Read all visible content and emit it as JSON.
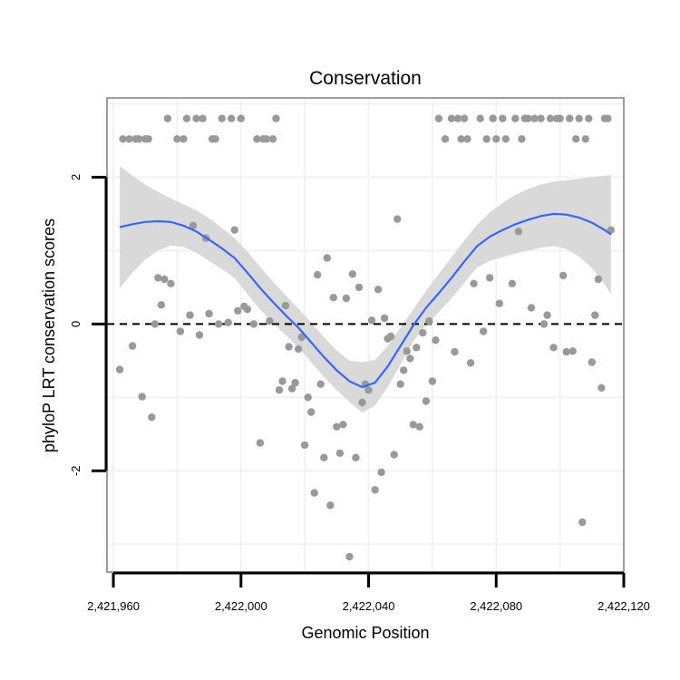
{
  "chart_data": {
    "type": "scatter",
    "title": "Conservation",
    "xlabel": "Genomic Position",
    "ylabel": "phyloP LRT conservation scores",
    "xlim": [
      2421958,
      2422120
    ],
    "ylim": [
      -3.38,
      3.08
    ],
    "x_ticks": [
      2421960,
      2422000,
      2422040,
      2422080,
      2422120
    ],
    "x_tick_labels": [
      "2,421,960",
      "2,422,000",
      "2,422,040",
      "2,422,080",
      "2,422,120"
    ],
    "y_ticks": [
      -2,
      0,
      2
    ],
    "y_tick_labels": [
      "-2",
      "0",
      "2"
    ],
    "reference_line": {
      "y": 0,
      "style": "dashed"
    },
    "colors": {
      "points": "#999999",
      "smooth": "#3366ff",
      "band": "#d9d9d9",
      "panel_border": "#7f7f7f",
      "grid": "#f2f2f2"
    },
    "points": [
      [
        2421962,
        -0.62
      ],
      [
        2421963,
        2.52
      ],
      [
        2421965,
        2.52
      ],
      [
        2421966,
        -0.3
      ],
      [
        2421967,
        2.52
      ],
      [
        2421968,
        2.52
      ],
      [
        2421969,
        -0.99
      ],
      [
        2421970,
        2.52
      ],
      [
        2421971,
        2.52
      ],
      [
        2421972,
        -1.27
      ],
      [
        2421973,
        0.0
      ],
      [
        2421974,
        0.63
      ],
      [
        2421975,
        0.26
      ],
      [
        2421976,
        0.61
      ],
      [
        2421977,
        2.8
      ],
      [
        2421978,
        0.55
      ],
      [
        2421980,
        2.52
      ],
      [
        2421981,
        -0.1
      ],
      [
        2421982,
        2.52
      ],
      [
        2421983,
        2.8
      ],
      [
        2421984,
        0.12
      ],
      [
        2421985,
        1.34
      ],
      [
        2421986,
        2.8
      ],
      [
        2421987,
        -0.15
      ],
      [
        2421988,
        2.8
      ],
      [
        2421989,
        1.17
      ],
      [
        2421990,
        0.14
      ],
      [
        2421991,
        2.52
      ],
      [
        2421992,
        2.52
      ],
      [
        2421993,
        0.0
      ],
      [
        2421994,
        2.8
      ],
      [
        2421996,
        0.02
      ],
      [
        2421997,
        2.8
      ],
      [
        2421998,
        1.28
      ],
      [
        2421999,
        0.18
      ],
      [
        2422000,
        2.8
      ],
      [
        2422001,
        0.24
      ],
      [
        2422002,
        0.2
      ],
      [
        2422004,
        0.0
      ],
      [
        2422005,
        2.52
      ],
      [
        2422006,
        -1.62
      ],
      [
        2422007,
        2.52
      ],
      [
        2422008,
        2.52
      ],
      [
        2422009,
        0.04
      ],
      [
        2422010,
        2.52
      ],
      [
        2422011,
        2.8
      ],
      [
        2422012,
        -0.9
      ],
      [
        2422013,
        -0.78
      ],
      [
        2422014,
        0.25
      ],
      [
        2422015,
        -0.31
      ],
      [
        2422016,
        -0.88
      ],
      [
        2422017,
        -0.8
      ],
      [
        2422018,
        -0.34
      ],
      [
        2422019,
        -0.18
      ],
      [
        2422020,
        -1.65
      ],
      [
        2422021,
        -1.0
      ],
      [
        2422022,
        -1.2
      ],
      [
        2422023,
        -2.3
      ],
      [
        2422024,
        0.67
      ],
      [
        2422025,
        -0.82
      ],
      [
        2422026,
        -1.82
      ],
      [
        2422027,
        0.9
      ],
      [
        2422028,
        -2.47
      ],
      [
        2422029,
        0.36
      ],
      [
        2422030,
        -1.4
      ],
      [
        2422031,
        -1.76
      ],
      [
        2422032,
        -1.37
      ],
      [
        2422033,
        0.35
      ],
      [
        2422034,
        -3.17
      ],
      [
        2422035,
        0.68
      ],
      [
        2422036,
        -1.82
      ],
      [
        2422037,
        0.5
      ],
      [
        2422038,
        -1.07
      ],
      [
        2422039,
        -0.82
      ],
      [
        2422040,
        -0.9
      ],
      [
        2422041,
        0.05
      ],
      [
        2422042,
        -2.26
      ],
      [
        2422043,
        0.47
      ],
      [
        2422044,
        -2.02
      ],
      [
        2422045,
        0.08
      ],
      [
        2422046,
        -0.2
      ],
      [
        2422047,
        -0.17
      ],
      [
        2422048,
        -1.78
      ],
      [
        2422049,
        1.43
      ],
      [
        2422050,
        -0.82
      ],
      [
        2422051,
        -0.63
      ],
      [
        2422052,
        -0.37
      ],
      [
        2422053,
        -0.47
      ],
      [
        2422054,
        -1.37
      ],
      [
        2422055,
        -0.32
      ],
      [
        2422056,
        -1.4
      ],
      [
        2422057,
        -0.12
      ],
      [
        2422058,
        -1.05
      ],
      [
        2422059,
        0.04
      ],
      [
        2422060,
        -0.78
      ],
      [
        2422061,
        -0.22
      ],
      [
        2422062,
        2.8
      ],
      [
        2422064,
        2.52
      ],
      [
        2422066,
        2.8
      ],
      [
        2422067,
        -0.38
      ],
      [
        2422068,
        2.8
      ],
      [
        2422069,
        2.52
      ],
      [
        2422070,
        2.8
      ],
      [
        2422071,
        2.52
      ],
      [
        2422072,
        -0.53
      ],
      [
        2422073,
        0.55
      ],
      [
        2422075,
        2.8
      ],
      [
        2422076,
        -0.1
      ],
      [
        2422077,
        2.52
      ],
      [
        2422078,
        0.63
      ],
      [
        2422079,
        2.8
      ],
      [
        2422080,
        2.52
      ],
      [
        2422081,
        0.28
      ],
      [
        2422082,
        2.8
      ],
      [
        2422083,
        2.52
      ],
      [
        2422085,
        0.55
      ],
      [
        2422086,
        2.8
      ],
      [
        2422087,
        1.26
      ],
      [
        2422088,
        2.52
      ],
      [
        2422089,
        2.8
      ],
      [
        2422090,
        2.8
      ],
      [
        2422091,
        0.22
      ],
      [
        2422092,
        2.8
      ],
      [
        2422094,
        2.8
      ],
      [
        2422095,
        0.0
      ],
      [
        2422096,
        0.12
      ],
      [
        2422097,
        2.8
      ],
      [
        2422098,
        -0.32
      ],
      [
        2422099,
        2.8
      ],
      [
        2422100,
        2.8
      ],
      [
        2422101,
        0.66
      ],
      [
        2422102,
        -0.38
      ],
      [
        2422103,
        2.8
      ],
      [
        2422104,
        -0.37
      ],
      [
        2422105,
        2.52
      ],
      [
        2422106,
        2.8
      ],
      [
        2422107,
        -2.7
      ],
      [
        2422108,
        2.52
      ],
      [
        2422109,
        2.8
      ],
      [
        2422110,
        -0.52
      ],
      [
        2422111,
        0.12
      ],
      [
        2422112,
        0.61
      ],
      [
        2422113,
        -0.87
      ],
      [
        2422114,
        2.8
      ],
      [
        2422115,
        2.8
      ],
      [
        2422116,
        1.28
      ]
    ],
    "smooth": {
      "x": [
        2421962,
        2421966,
        2421970,
        2421974,
        2421978,
        2421982,
        2421986,
        2421990,
        2421994,
        2421998,
        2422002,
        2422006,
        2422010,
        2422014,
        2422018,
        2422022,
        2422026,
        2422030,
        2422034,
        2422038,
        2422042,
        2422046,
        2422050,
        2422054,
        2422058,
        2422062,
        2422066,
        2422070,
        2422074,
        2422078,
        2422082,
        2422086,
        2422090,
        2422094,
        2422098,
        2422102,
        2422106,
        2422110,
        2422114,
        2422116
      ],
      "y": [
        1.32,
        1.36,
        1.39,
        1.4,
        1.39,
        1.34,
        1.26,
        1.15,
        1.03,
        0.9,
        0.7,
        0.49,
        0.3,
        0.12,
        -0.05,
        -0.25,
        -0.45,
        -0.63,
        -0.78,
        -0.86,
        -0.8,
        -0.58,
        -0.3,
        -0.02,
        0.22,
        0.42,
        0.63,
        0.85,
        1.06,
        1.19,
        1.28,
        1.36,
        1.42,
        1.47,
        1.5,
        1.49,
        1.45,
        1.38,
        1.28,
        1.22
      ],
      "upper": [
        2.15,
        2.02,
        1.9,
        1.8,
        1.71,
        1.63,
        1.55,
        1.44,
        1.31,
        1.17,
        0.99,
        0.78,
        0.58,
        0.39,
        0.21,
        0.02,
        -0.18,
        -0.36,
        -0.5,
        -0.52,
        -0.49,
        -0.3,
        -0.05,
        0.2,
        0.45,
        0.68,
        0.91,
        1.14,
        1.35,
        1.52,
        1.65,
        1.76,
        1.84,
        1.9,
        1.94,
        1.96,
        1.98,
        2.0,
        2.02,
        2.03
      ],
      "lower": [
        0.49,
        0.7,
        0.88,
        1.0,
        1.07,
        1.05,
        0.97,
        0.86,
        0.75,
        0.63,
        0.41,
        0.2,
        0.02,
        -0.15,
        -0.32,
        -0.52,
        -0.72,
        -0.9,
        -1.06,
        -1.21,
        -1.11,
        -0.86,
        -0.55,
        -0.24,
        -0.01,
        0.16,
        0.35,
        0.56,
        0.77,
        0.86,
        0.91,
        0.96,
        1.0,
        1.04,
        1.06,
        1.02,
        0.92,
        0.76,
        0.54,
        0.41
      ]
    }
  }
}
